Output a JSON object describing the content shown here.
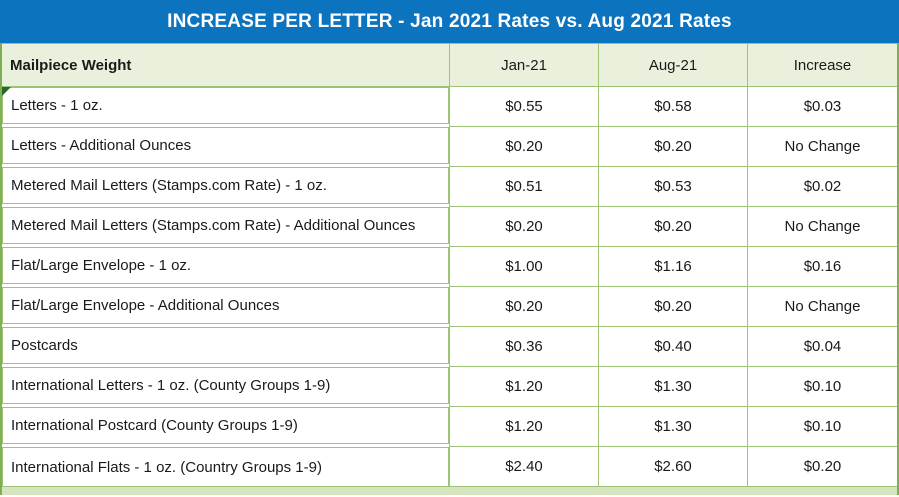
{
  "title_bar": {
    "title": "INCREASE PER LETTER - Jan 2021 Rates vs. Aug 2021 Rates"
  },
  "table": {
    "headers": {
      "label": "Mailpiece Weight",
      "jan": "Jan-21",
      "aug": "Aug-21",
      "increase": "Increase"
    },
    "rows": [
      {
        "label": "Letters - 1 oz.",
        "jan": "$0.55",
        "aug": "$0.58",
        "increase": "$0.03"
      },
      {
        "label": "Letters - Additional Ounces",
        "jan": "$0.20",
        "aug": "$0.20",
        "increase": "No Change"
      },
      {
        "label": "Metered Mail Letters (Stamps.com Rate) - 1 oz.",
        "jan": "$0.51",
        "aug": "$0.53",
        "increase": "$0.02"
      },
      {
        "label": "Metered Mail Letters (Stamps.com Rate) - Additional Ounces",
        "jan": "$0.20",
        "aug": "$0.20",
        "increase": "No Change"
      },
      {
        "label": "Flat/Large Envelope - 1 oz.",
        "jan": "$1.00",
        "aug": "$1.16",
        "increase": "$0.16"
      },
      {
        "label": "Flat/Large Envelope - Additional Ounces",
        "jan": "$0.20",
        "aug": "$0.20",
        "increase": "No Change"
      },
      {
        "label": "Postcards",
        "jan": "$0.36",
        "aug": "$0.40",
        "increase": "$0.04"
      },
      {
        "label": "International Letters - 1 oz. (County Groups 1-9)",
        "jan": "$1.20",
        "aug": "$1.30",
        "increase": "$0.10"
      },
      {
        "label": "International Postcard (County Groups 1-9)",
        "jan": "$1.20",
        "aug": "$1.30",
        "increase": "$0.10"
      },
      {
        "label": "International Flats - 1 oz. (Country Groups 1-9)",
        "jan": "$2.40",
        "aug": "$2.60",
        "increase": "$0.20"
      }
    ]
  },
  "colors": {
    "title_bar_bg": "#0c73bf",
    "title_text": "#ffffff",
    "header_bg": "#e9f1dd",
    "border_green": "#9dc376",
    "outer_border": "#7fae53",
    "bottom_band": "#d6e4c0",
    "flag_triangle": "#2b682c"
  },
  "chart_data": {
    "type": "table",
    "title": "INCREASE PER LETTER - Jan 2021 Rates vs. Aug 2021 Rates",
    "columns": [
      "Mailpiece Weight",
      "Jan-21",
      "Aug-21",
      "Increase"
    ],
    "rows": [
      [
        "Letters - 1 oz.",
        "$0.55",
        "$0.58",
        "$0.03"
      ],
      [
        "Letters - Additional Ounces",
        "$0.20",
        "$0.20",
        "No Change"
      ],
      [
        "Metered Mail Letters (Stamps.com Rate) - 1 oz.",
        "$0.51",
        "$0.53",
        "$0.02"
      ],
      [
        "Metered Mail Letters (Stamps.com Rate) - Additional Ounces",
        "$0.20",
        "$0.20",
        "No Change"
      ],
      [
        "Flat/Large Envelope - 1 oz.",
        "$1.00",
        "$1.16",
        "$0.16"
      ],
      [
        "Flat/Large Envelope - Additional Ounces",
        "$0.20",
        "$0.20",
        "No Change"
      ],
      [
        "Postcards",
        "$0.36",
        "$0.40",
        "$0.04"
      ],
      [
        "International Letters - 1 oz. (County Groups 1-9)",
        "$1.20",
        "$1.30",
        "$0.10"
      ],
      [
        "International Postcard (County Groups 1-9)",
        "$1.20",
        "$1.30",
        "$0.10"
      ],
      [
        "International Flats - 1 oz. (Country Groups 1-9)",
        "$2.40",
        "$2.60",
        "$0.20"
      ]
    ]
  }
}
